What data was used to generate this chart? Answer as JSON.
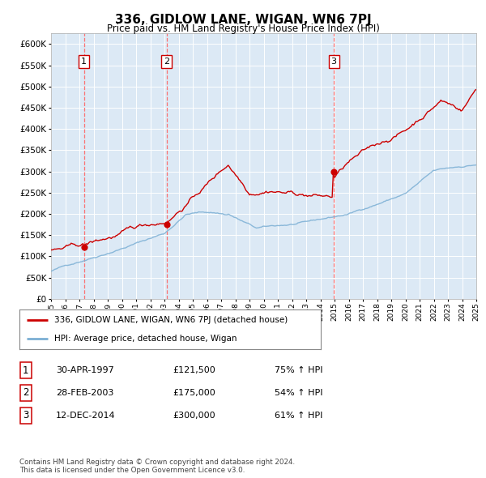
{
  "title": "336, GIDLOW LANE, WIGAN, WN6 7PJ",
  "subtitle": "Price paid vs. HM Land Registry's House Price Index (HPI)",
  "x_start_year": 1995,
  "x_end_year": 2025,
  "ylim": [
    0,
    625000
  ],
  "yticks": [
    0,
    50000,
    100000,
    150000,
    200000,
    250000,
    300000,
    350000,
    400000,
    450000,
    500000,
    550000,
    600000
  ],
  "sale_dates": [
    1997.33,
    2003.16,
    2014.95
  ],
  "sale_prices": [
    121500,
    175000,
    300000
  ],
  "sale_labels": [
    "1",
    "2",
    "3"
  ],
  "red_line_color": "#cc0000",
  "blue_line_color": "#7bafd4",
  "sale_dot_color": "#cc0000",
  "vline_color": "#ff6666",
  "plot_bg_color": "#dce9f5",
  "legend_entry1": "336, GIDLOW LANE, WIGAN, WN6 7PJ (detached house)",
  "legend_entry2": "HPI: Average price, detached house, Wigan",
  "table_rows": [
    [
      "1",
      "30-APR-1997",
      "£121,500",
      "75% ↑ HPI"
    ],
    [
      "2",
      "28-FEB-2003",
      "£175,000",
      "54% ↑ HPI"
    ],
    [
      "3",
      "12-DEC-2014",
      "£300,000",
      "61% ↑ HPI"
    ]
  ],
  "footnote": "Contains HM Land Registry data © Crown copyright and database right 2024.\nThis data is licensed under the Open Government Licence v3.0."
}
